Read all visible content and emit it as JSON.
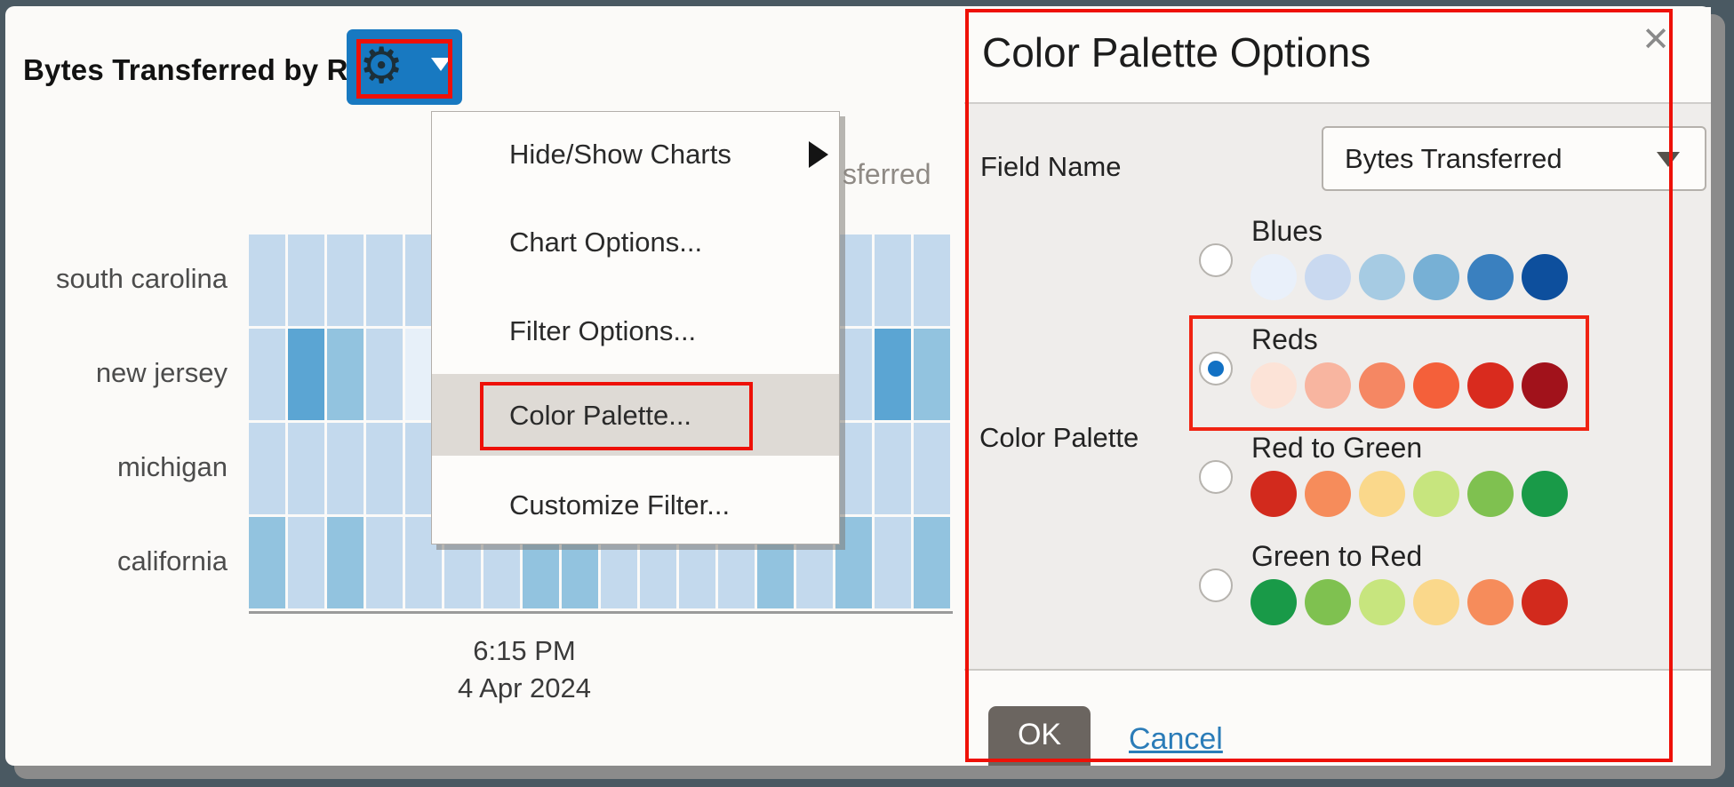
{
  "window": {
    "frame_color": "#4a5962",
    "shadow_color": "#8b8b8b",
    "page_bg": "#fbfaf8",
    "annotation_color": "#ee1007"
  },
  "chart": {
    "title": "Bytes Transferred by Region",
    "legend_partial_text": "sferred",
    "row_labels": [
      "south carolina",
      "new jersey",
      "michigan",
      "california"
    ],
    "time_label_line1": "6:15 PM",
    "time_label_line2": "4 Apr 2024",
    "heatmap": {
      "shades": {
        "L": "#c3d9ed",
        "M": "#92c3df",
        "D": "#5ba5d3",
        "VL": "#e7f0f9"
      },
      "cells": [
        [
          "L",
          "L",
          "L",
          "L",
          "L",
          "L",
          "L",
          "L",
          "L",
          "L",
          "L",
          "L",
          "L",
          "L",
          "L",
          "L",
          "L",
          "L"
        ],
        [
          "L",
          "D",
          "M",
          "L",
          "VL",
          "L",
          "L",
          "L",
          "L",
          "L",
          "L",
          "L",
          "L",
          "L",
          "L",
          "L",
          "D",
          "M"
        ],
        [
          "L",
          "L",
          "L",
          "L",
          "L",
          "L",
          "L",
          "L",
          "L",
          "L",
          "L",
          "L",
          "L",
          "L",
          "L",
          "L",
          "L",
          "L"
        ],
        [
          "M",
          "L",
          "M",
          "L",
          "L",
          "L",
          "L",
          "M",
          "M",
          "L",
          "L",
          "L",
          "L",
          "M",
          "L",
          "M",
          "L",
          "M"
        ]
      ]
    }
  },
  "gear_button": {
    "color": "#1879c1",
    "gear_icon": "⚙"
  },
  "gear_menu": {
    "items": [
      {
        "label": "Hide/Show Charts",
        "has_submenu": true
      },
      {
        "label": "Chart Options...",
        "has_submenu": false
      },
      {
        "label": "Filter Options...",
        "has_submenu": false
      },
      {
        "label": "Color Palette...",
        "has_submenu": false,
        "highlighted": true
      },
      {
        "label": "Customize Filter...",
        "has_submenu": false
      }
    ]
  },
  "dialog": {
    "title": "Color Palette Options",
    "close_label": "✕",
    "field_name_label": "Field Name",
    "field_name_value": "Bytes Transferred",
    "color_palette_label": "Color Palette",
    "radio_selected_color": "#1271c4",
    "palettes": [
      {
        "name": "Blues",
        "selected": false,
        "colors": [
          "#e9f0fa",
          "#c9d9f0",
          "#a6cbe3",
          "#77b0d5",
          "#3a80bf",
          "#0d4f9d"
        ]
      },
      {
        "name": "Reds",
        "selected": true,
        "annotated": true,
        "colors": [
          "#fce3d7",
          "#f8b5a0",
          "#f58763",
          "#f4603a",
          "#d92b1e",
          "#a1121b"
        ]
      },
      {
        "name": "Red to Green",
        "selected": false,
        "colors": [
          "#d22a1d",
          "#f68c5b",
          "#fad88b",
          "#c7e57e",
          "#7fc150",
          "#199a48"
        ]
      },
      {
        "name": "Green to Red",
        "selected": false,
        "colors": [
          "#199a48",
          "#7fc150",
          "#c7e57e",
          "#fad88b",
          "#f68c5b",
          "#d22a1d"
        ]
      }
    ],
    "ok_label": "OK",
    "cancel_label": "Cancel"
  }
}
